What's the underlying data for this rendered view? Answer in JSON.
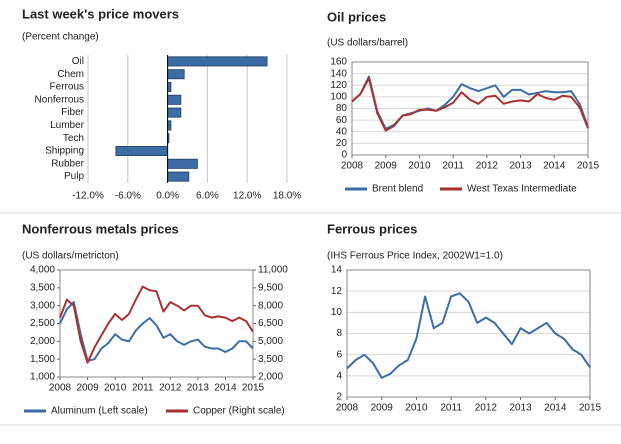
{
  "chart_data": [
    {
      "type": "hbar",
      "title": "Last week's price movers",
      "subtitle": "(Percent change)",
      "categories": [
        "Oil",
        "Chem",
        "Ferrous",
        "Nonferrous",
        "Fiber",
        "Lumber",
        "Tech",
        "Shipping",
        "Rubber",
        "Pulp"
      ],
      "values": [
        15.0,
        2.5,
        0.5,
        2.0,
        2.0,
        0.5,
        0.2,
        -7.8,
        4.5,
        3.2
      ],
      "color": "#3d6ba3",
      "xlim": [
        -12,
        18
      ],
      "xticks": [
        {
          "value": -12,
          "label": "-12.0%"
        },
        {
          "value": -6,
          "label": "-6.0%"
        },
        {
          "value": 0,
          "label": "0.0%"
        },
        {
          "value": 6,
          "label": "6.0%"
        },
        {
          "value": 12,
          "label": "12.0%"
        },
        {
          "value": 18,
          "label": "18.0%"
        }
      ],
      "grid": true
    },
    {
      "type": "line",
      "title": "Oil prices",
      "subtitle": "(US dollars/barrel)",
      "x": [
        2008,
        2008.25,
        2008.5,
        2008.75,
        2009,
        2009.25,
        2009.5,
        2009.75,
        2010,
        2010.25,
        2010.5,
        2010.75,
        2011,
        2011.25,
        2011.5,
        2011.75,
        2012,
        2012.25,
        2012.5,
        2012.75,
        2013,
        2013.25,
        2013.5,
        2013.75,
        2014,
        2014.25,
        2014.5,
        2014.75,
        2015
      ],
      "series": [
        {
          "name": "Brent blend",
          "color": "#3a6ea5",
          "values": [
            92,
            105,
            135,
            75,
            45,
            52,
            68,
            72,
            76,
            80,
            76,
            86,
            100,
            122,
            115,
            110,
            115,
            120,
            100,
            112,
            112,
            104,
            107,
            110,
            108,
            108,
            110,
            88,
            48
          ]
        },
        {
          "name": "West Texas Intermediate",
          "color": "#a83232",
          "values": [
            92,
            105,
            132,
            72,
            42,
            50,
            68,
            70,
            78,
            78,
            76,
            82,
            90,
            108,
            95,
            88,
            100,
            102,
            88,
            92,
            94,
            92,
            105,
            98,
            95,
            102,
            100,
            82,
            46
          ]
        }
      ],
      "xlim": [
        2008,
        2015
      ],
      "xticks": [
        2008,
        2009,
        2010,
        2011,
        2012,
        2013,
        2014,
        2015
      ],
      "ylim": [
        0,
        160
      ],
      "yticks": [
        0,
        20,
        40,
        60,
        80,
        100,
        120,
        140,
        160
      ],
      "grid": true
    },
    {
      "type": "line",
      "title": "Nonferrous metals prices",
      "subtitle": "(US dollars/metricton)",
      "x": [
        2008,
        2008.25,
        2008.5,
        2008.75,
        2009,
        2009.25,
        2009.5,
        2009.75,
        2010,
        2010.25,
        2010.5,
        2010.75,
        2011,
        2011.25,
        2011.5,
        2011.75,
        2012,
        2012.25,
        2012.5,
        2012.75,
        2013,
        2013.25,
        2013.5,
        2013.75,
        2014,
        2014.25,
        2014.5,
        2014.75,
        2015
      ],
      "series": [
        {
          "name": "Aluminum (Left scale)",
          "color": "#3a6ea5",
          "values": [
            2500,
            2900,
            3100,
            2200,
            1450,
            1500,
            1800,
            1950,
            2200,
            2050,
            2000,
            2300,
            2500,
            2650,
            2450,
            2100,
            2200,
            2000,
            1900,
            2000,
            2050,
            1850,
            1800,
            1800,
            1700,
            1800,
            2000,
            2000,
            1800
          ]
        },
        {
          "name": "Copper (Right scale)",
          "color": "#a83232",
          "axis": "y2",
          "values": [
            7000,
            8500,
            8000,
            5000,
            3200,
            4500,
            5500,
            6500,
            7300,
            6800,
            7300,
            8500,
            9600,
            9300,
            9200,
            7500,
            8300,
            8000,
            7600,
            8000,
            8000,
            7200,
            7000,
            7100,
            7000,
            6700,
            7000,
            6700,
            5800
          ]
        }
      ],
      "xlim": [
        2008,
        2015
      ],
      "xticks": [
        2008,
        2009,
        2010,
        2011,
        2012,
        2013,
        2014,
        2015
      ],
      "ylim": [
        1000,
        4000
      ],
      "yticks": [
        {
          "value": 1000,
          "label": "1,000"
        },
        {
          "value": 1500,
          "label": "1,500"
        },
        {
          "value": 2000,
          "label": "2,000"
        },
        {
          "value": 2500,
          "label": "2,500"
        },
        {
          "value": 3000,
          "label": "3,000"
        },
        {
          "value": 3500,
          "label": "3,500"
        },
        {
          "value": 4000,
          "label": "4,000"
        }
      ],
      "y2lim": [
        2000,
        11000
      ],
      "y2ticks": [
        {
          "value": 2000,
          "label": "2,000"
        },
        {
          "value": 3500,
          "label": "3,500"
        },
        {
          "value": 5000,
          "label": "5,000"
        },
        {
          "value": 6500,
          "label": "6,500"
        },
        {
          "value": 8000,
          "label": "8,000"
        },
        {
          "value": 9500,
          "label": "9,500"
        },
        {
          "value": 11000,
          "label": "11,000"
        }
      ],
      "grid": false
    },
    {
      "type": "line",
      "title": "Ferrous prices",
      "subtitle": "(IHS Ferrous Price Index, 2002W1=1.0)",
      "x": [
        2008,
        2008.25,
        2008.5,
        2008.75,
        2009,
        2009.25,
        2009.5,
        2009.75,
        2010,
        2010.25,
        2010.5,
        2010.75,
        2011,
        2011.25,
        2011.5,
        2011.75,
        2012,
        2012.25,
        2012.5,
        2012.75,
        2013,
        2013.25,
        2013.5,
        2013.75,
        2014,
        2014.25,
        2014.5,
        2014.75,
        2015
      ],
      "values": [
        4.7,
        5.5,
        6.0,
        5.2,
        3.8,
        4.2,
        5.0,
        5.5,
        7.5,
        11.5,
        8.5,
        9.0,
        11.5,
        11.8,
        11.0,
        9.0,
        9.5,
        9.0,
        8.0,
        7.0,
        8.5,
        8.0,
        8.5,
        9.0,
        8.0,
        7.5,
        6.5,
        6.0,
        4.8
      ],
      "color": "#3a6ea5",
      "xlim": [
        2008,
        2015
      ],
      "xticks": [
        2008,
        2009,
        2010,
        2011,
        2012,
        2013,
        2014,
        2015
      ],
      "ylim": [
        2,
        14
      ],
      "yticks": [
        2,
        4,
        6,
        8,
        10,
        12,
        14
      ],
      "grid": true
    }
  ]
}
